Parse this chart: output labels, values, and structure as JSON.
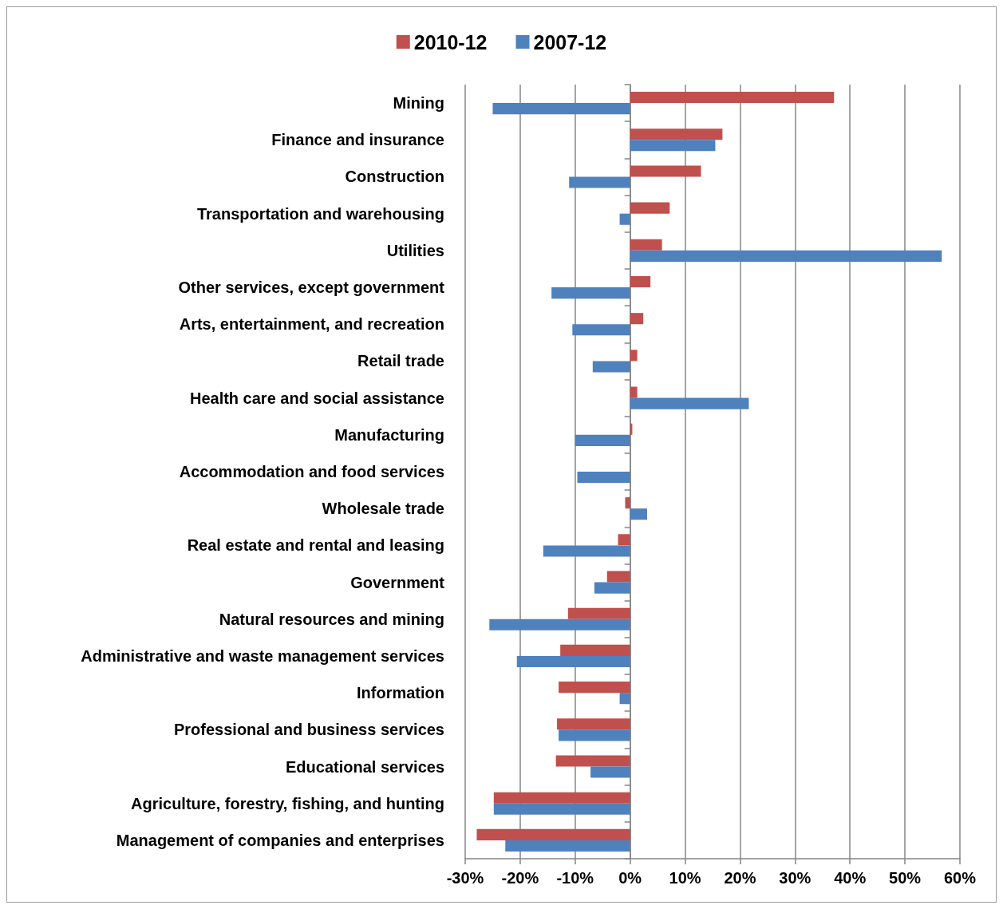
{
  "chart_data": {
    "type": "bar",
    "orientation": "horizontal",
    "categories": [
      "Mining",
      "Finance and insurance",
      "Construction",
      "Transportation and warehousing",
      "Utilities",
      "Other services, except government",
      "Arts, entertainment, and recreation",
      "Retail trade",
      "Health care and social assistance",
      "Manufacturing",
      "Accommodation and food services",
      "Wholesale trade",
      "Real estate and rental and leasing",
      "Government",
      "Natural resources and mining",
      "Administrative and waste management services",
      "Information",
      "Professional and business services",
      "Educational services",
      "Agriculture, forestry, fishing, and hunting",
      "Management of companies and enterprises"
    ],
    "series": [
      {
        "name": "2010-12",
        "color": "#c0504d",
        "values": [
          37.1,
          16.8,
          12.9,
          7.2,
          5.8,
          3.7,
          2.4,
          1.3,
          1.3,
          0.4,
          0,
          -0.9,
          -2.2,
          -4.2,
          -11.3,
          -12.7,
          -13.0,
          -13.3,
          -13.5,
          -24.8,
          -27.9
        ]
      },
      {
        "name": "2007-12",
        "color": "#4f81bd",
        "values": [
          -25.0,
          15.5,
          -11.1,
          -1.9,
          56.7,
          -14.3,
          -10.5,
          -6.8,
          21.6,
          -10.0,
          -9.6,
          3.1,
          -15.8,
          -6.5,
          -25.6,
          -20.6,
          -1.9,
          -13.0,
          -7.2,
          -24.8,
          -22.7
        ]
      }
    ],
    "xlim": [
      -30,
      60
    ],
    "xticks": [
      {
        "value": -30,
        "label": "-30%"
      },
      {
        "value": -20,
        "label": "-20%"
      },
      {
        "value": -10,
        "label": "-10%"
      },
      {
        "value": 0,
        "label": "0%"
      },
      {
        "value": 10,
        "label": "10%"
      },
      {
        "value": 20,
        "label": "20%"
      },
      {
        "value": 30,
        "label": "30%"
      },
      {
        "value": 40,
        "label": "40%"
      },
      {
        "value": 50,
        "label": "50%"
      },
      {
        "value": 60,
        "label": "60%"
      }
    ],
    "grid": "x",
    "legend": "top"
  }
}
